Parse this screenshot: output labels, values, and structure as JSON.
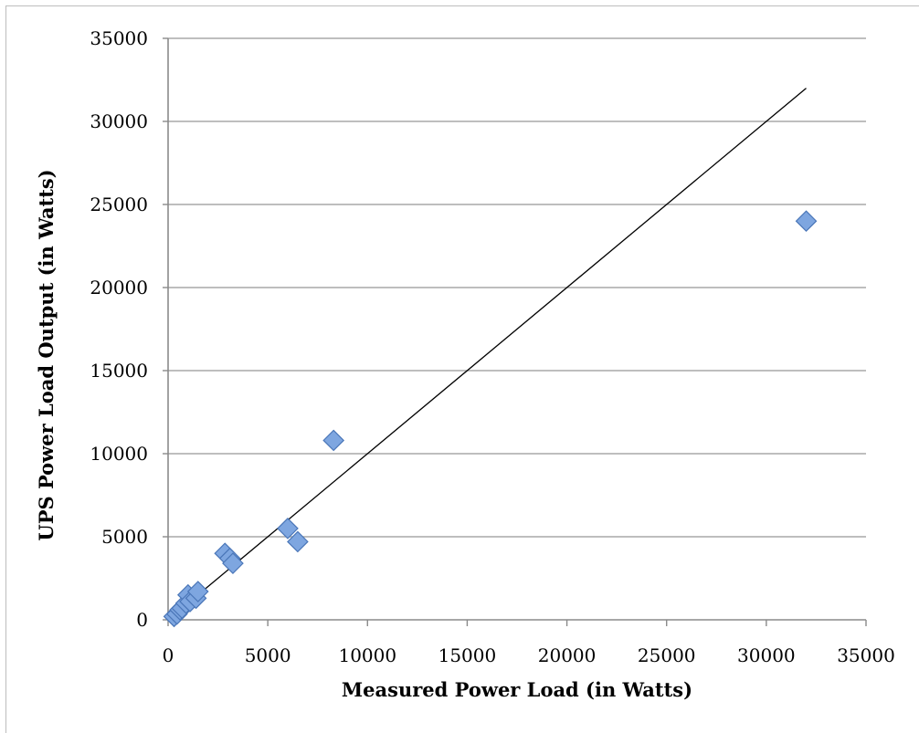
{
  "chart_data": {
    "type": "scatter",
    "title": "",
    "xlabel": "Measured Power Load (in Watts)",
    "ylabel": "UPS Power Load Output (in Watts)",
    "xlim": [
      0,
      35000
    ],
    "ylim": [
      0,
      35000
    ],
    "x_ticks": [
      "0",
      "5000",
      "10000",
      "15000",
      "20000",
      "25000",
      "30000",
      "35000"
    ],
    "y_ticks": [
      "0",
      "5000",
      "10000",
      "15000",
      "20000",
      "25000",
      "30000",
      "35000"
    ],
    "grid": "horizontal",
    "legend": "none",
    "marker_color": "#7ea6e0",
    "marker_edge": "#4a76b8",
    "series": [
      {
        "marker": "diamond",
        "points": [
          [
            300,
            200
          ],
          [
            450,
            350
          ],
          [
            600,
            600
          ],
          [
            700,
            700
          ],
          [
            900,
            1000
          ],
          [
            1000,
            1500
          ],
          [
            1100,
            1100
          ],
          [
            1400,
            1300
          ],
          [
            1500,
            1700
          ],
          [
            2850,
            4000
          ],
          [
            3100,
            3700
          ],
          [
            3250,
            3400
          ],
          [
            6000,
            5500
          ],
          [
            6500,
            4700
          ],
          [
            8300,
            10800
          ],
          [
            32000,
            24000
          ]
        ]
      }
    ],
    "reference_line": {
      "x": [
        500,
        32000
      ],
      "y": [
        500,
        32000
      ],
      "color": "#000000"
    }
  }
}
